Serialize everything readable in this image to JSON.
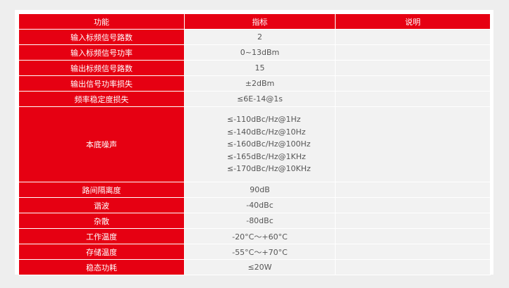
{
  "header": {
    "col1": "功能",
    "col2": "指标",
    "col3": "说明"
  },
  "rows": [
    {
      "name": "输入标频信号路数",
      "value": "2"
    },
    {
      "name": "输入标频信号功率",
      "value": "0~13dBm"
    },
    {
      "name": "输出标频信号路数",
      "value": "15"
    },
    {
      "name": "输出信号功率损失",
      "value": "±2dBm"
    },
    {
      "name": "频率稳定度损失",
      "value": "≤6E-14@1s"
    },
    {
      "name": "本底噪声",
      "values": [
        "≤-110dBc/Hz@1Hz",
        "≤-140dBc/Hz@10Hz",
        "≤-160dBc/Hz@100Hz",
        "≤-165dBc/Hz@1KHz",
        "≤-170dBc/Hz@10KHz"
      ]
    },
    {
      "name": "路间隔离度",
      "value": "90dB"
    },
    {
      "name": "谐波",
      "value": "-40dBc"
    },
    {
      "name": "杂散",
      "value": "-80dBc"
    },
    {
      "name": "工作温度",
      "value": "-20°C～+60°C"
    },
    {
      "name": "存储温度",
      "value": "-55°C～+70°C"
    },
    {
      "name": "稳态功耗",
      "value": "≤20W"
    }
  ],
  "colors": {
    "accent": "#e60012",
    "cell": "#f2f2f2",
    "page": "#eeeeee"
  }
}
